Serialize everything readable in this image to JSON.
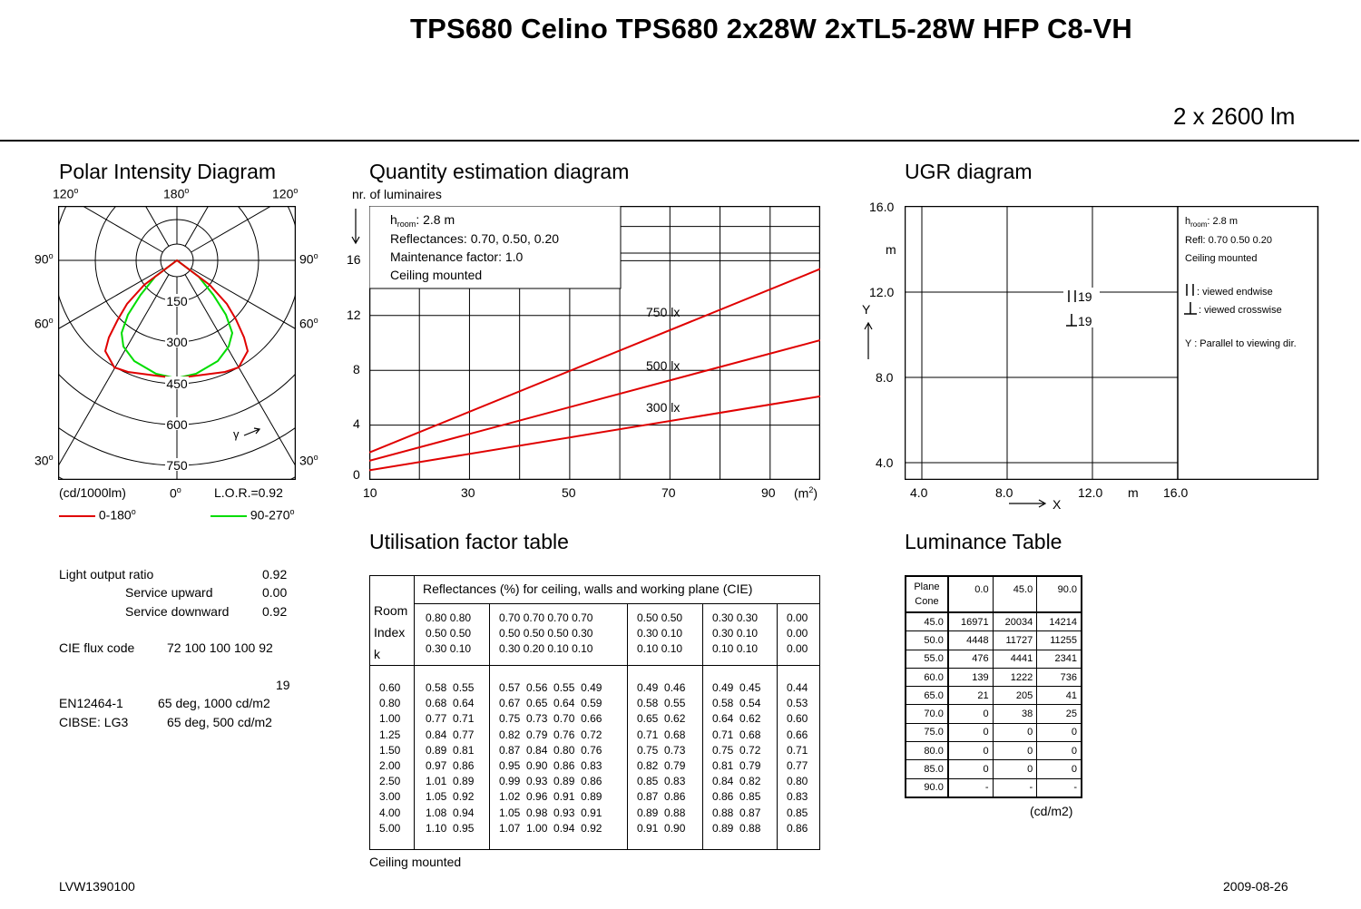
{
  "header": {
    "title": "TPS680 Celino TPS680 2x28W 2xTL5-28W HFP C8-VH",
    "flux": "2 x 2600 lm"
  },
  "polar": {
    "title": "Polar Intensity Diagram",
    "angle_labels": {
      "top_left": "120",
      "top_center": "180",
      "top_right": "120",
      "upper_left": "90",
      "upper_right": "90",
      "mid_left": "60",
      "mid_right": "60",
      "low_left": "30",
      "low_right": "30",
      "bottom_center": "0"
    },
    "ring_labels": [
      "150",
      "300",
      "450",
      "600",
      "750"
    ],
    "gamma_label": "γ",
    "unit_label": "(cd/1000lm)",
    "lor_label": "L.O.R.=0.92",
    "legend": [
      {
        "label": "0-180",
        "color": "#e00000"
      },
      {
        "label": "90-270",
        "color": "#00dd00"
      }
    ],
    "max_intensity": 750
  },
  "lor_info": {
    "rows": [
      {
        "label": "Light output ratio",
        "value": "0.92"
      },
      {
        "label": "Service upward",
        "value": "0.00"
      },
      {
        "label": "Service downward",
        "value": "0.92"
      }
    ],
    "cie_label": "CIE flux code",
    "cie_value": "72 100 100 100 92",
    "ugr_value": "19",
    "standards": [
      {
        "label": "EN12464-1",
        "value": "65 deg, 1000 cd/m2"
      },
      {
        "label": "CIBSE: LG3",
        "value": "65 deg, 500 cd/m2"
      }
    ]
  },
  "quantity": {
    "title": "Quantity estimation diagram",
    "ylabel": "nr. of luminaires",
    "xunit": "(m",
    "info": [
      "h",
      ": 2.8 m",
      "Reflectances: 0.70, 0.50, 0.20",
      "Maintenance factor: 1.0",
      "Ceiling mounted",
      "room"
    ],
    "xticks": [
      "10",
      "30",
      "50",
      "70",
      "90"
    ],
    "yticks": [
      "0",
      "4",
      "8",
      "12",
      "16"
    ]
  },
  "chart_data": {
    "type": "line",
    "title": "Quantity estimation diagram",
    "ylabel": "nr. of luminaires",
    "xlabel": "(m2)",
    "xlim": [
      10,
      100
    ],
    "ylim": [
      0,
      20
    ],
    "series": [
      {
        "name": "750 lx",
        "color": "#e00000",
        "x": [
          10,
          100
        ],
        "y": [
          2.0,
          15.4
        ]
      },
      {
        "name": "500 lx",
        "color": "#e00000",
        "x": [
          10,
          100
        ],
        "y": [
          1.4,
          10.2
        ]
      },
      {
        "name": "300 lx",
        "color": "#e00000",
        "x": [
          10,
          100
        ],
        "y": [
          0.7,
          6.1
        ]
      }
    ]
  },
  "ugr": {
    "title": "UGR diagram",
    "yticks": [
      "4.0",
      "8.0",
      "12.0",
      "16.0"
    ],
    "xticks": [
      "4.0",
      "8.0",
      "12.0",
      "16.0"
    ],
    "unit": "m",
    "y_axis": "Y",
    "x_axis": "X",
    "endwise_value": "19",
    "crosswise_value": "19",
    "info": {
      "h_sub": "room",
      "h_value": ": 2.8 m",
      "refl": "Refl: 0.70 0.50 0.20",
      "mount": "Ceiling mounted",
      "endwise": ": viewed endwise",
      "crosswise": ": viewed crosswise",
      "parallel": "Y   : Parallel to viewing dir."
    }
  },
  "utilisation": {
    "title": "Utilisation factor table",
    "header": "Reflectances (%) for ceiling, walls and working plane (CIE)",
    "room_index_label": [
      "Room",
      "Index",
      "k"
    ],
    "col_groups": [
      [
        "0.80 0.80\n0.50 0.50\n0.30 0.10"
      ],
      [
        "0.70 0.70 0.70 0.70\n0.50 0.50 0.50 0.30\n0.30 0.20 0.10 0.10"
      ],
      [
        "0.50 0.50\n0.30 0.10\n0.10 0.10"
      ],
      [
        "0.30 0.30\n0.30 0.10\n0.10 0.10"
      ],
      [
        "0.00\n0.00\n0.00"
      ]
    ],
    "room_index": [
      "0.60",
      "0.80",
      "1.00",
      "1.25",
      "1.50",
      "2.00",
      "2.50",
      "3.00",
      "4.00",
      "5.00"
    ],
    "groups": [
      [
        "0.58  0.55",
        "0.68  0.64",
        "0.77  0.71",
        "0.84  0.77",
        "0.89  0.81",
        "0.97  0.86",
        "1.01  0.89",
        "1.05  0.92",
        "1.08  0.94",
        "1.10  0.95"
      ],
      [
        "0.57  0.56  0.55  0.49",
        "0.67  0.65  0.64  0.59",
        "0.75  0.73  0.70  0.66",
        "0.82  0.79  0.76  0.72",
        "0.87  0.84  0.80  0.76",
        "0.95  0.90  0.86  0.83",
        "0.99  0.93  0.89  0.86",
        "1.02  0.96  0.91  0.89",
        "1.05  0.98  0.93  0.91",
        "1.07  1.00  0.94  0.92"
      ],
      [
        "0.49  0.46",
        "0.58  0.55",
        "0.65  0.62",
        "0.71  0.68",
        "0.75  0.73",
        "0.82  0.79",
        "0.85  0.83",
        "0.87  0.86",
        "0.89  0.88",
        "0.91  0.90"
      ],
      [
        "0.49  0.45",
        "0.58  0.54",
        "0.64  0.62",
        "0.71  0.68",
        "0.75  0.72",
        "0.81  0.79",
        "0.84  0.82",
        "0.86  0.85",
        "0.88  0.87",
        "0.89  0.88"
      ],
      [
        "0.44",
        "0.53",
        "0.60",
        "0.66",
        "0.71",
        "0.77",
        "0.80",
        "0.83",
        "0.85",
        "0.86"
      ]
    ],
    "footer": "Ceiling mounted"
  },
  "luminance": {
    "title": "Luminance Table",
    "corner": [
      "Plane",
      "Cone"
    ],
    "columns": [
      "0.0",
      "45.0",
      "90.0"
    ],
    "rows": [
      [
        "45.0",
        "16971",
        "20034",
        "14214"
      ],
      [
        "50.0",
        "4448",
        "11727",
        "11255"
      ],
      [
        "55.0",
        "476",
        "4441",
        "2341"
      ],
      [
        "60.0",
        "139",
        "1222",
        "736"
      ],
      [
        "65.0",
        "21",
        "205",
        "41"
      ],
      [
        "70.0",
        "0",
        "38",
        "25"
      ],
      [
        "75.0",
        "0",
        "0",
        "0"
      ],
      [
        "80.0",
        "0",
        "0",
        "0"
      ],
      [
        "85.0",
        "0",
        "0",
        "0"
      ],
      [
        "90.0",
        "-",
        "-",
        "-"
      ]
    ],
    "unit": "(cd/m2)"
  },
  "footer": {
    "code": "LVW1390100",
    "date": "2009-08-26"
  }
}
